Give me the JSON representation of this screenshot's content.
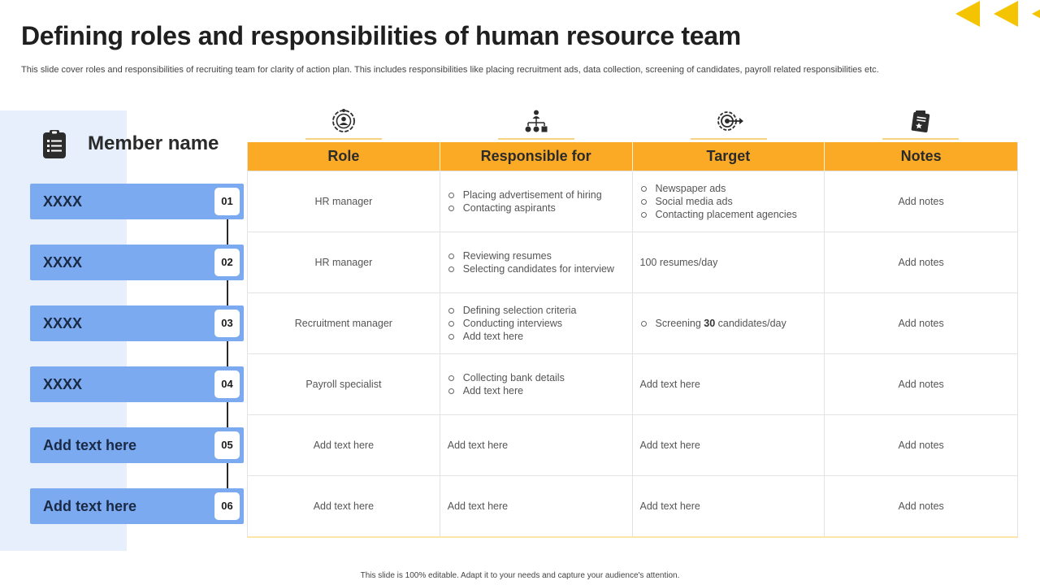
{
  "header": {
    "title": "Defining roles and responsibilities of human resource team",
    "subtitle": "This slide cover roles and responsibilities of recruiting team for clarity of action plan. This includes responsibilities like placing recruitment ads, data collection, screening of candidates, payroll related responsibilities etc."
  },
  "members": {
    "heading": "Member name",
    "icon": "clipboard-list-icon",
    "items": [
      {
        "label": "XXXX",
        "num": "01"
      },
      {
        "label": "XXXX",
        "num": "02"
      },
      {
        "label": "XXXX",
        "num": "03"
      },
      {
        "label": "XXXX",
        "num": "04"
      },
      {
        "label": "Add text here",
        "num": "05"
      },
      {
        "label": "Add text here",
        "num": "06"
      }
    ]
  },
  "table": {
    "icons": [
      "user-settings-icon",
      "org-chart-icon",
      "target-icon",
      "notes-star-icon"
    ],
    "headers": [
      "Role",
      "Responsible for",
      "Target",
      "Notes"
    ],
    "rows": [
      {
        "role": "HR manager",
        "responsible": [
          "Placing advertisement  of hiring",
          "Contacting aspirants"
        ],
        "target": [
          "Newspaper ads",
          "Social media ads",
          "Contacting placement agencies"
        ],
        "notes": "Add notes"
      },
      {
        "role": "HR manager",
        "responsible": [
          "Reviewing  resumes",
          "Selecting candidates for interview"
        ],
        "target": "100 resumes/day",
        "notes": "Add notes"
      },
      {
        "role": "Recruitment manager",
        "responsible": [
          "Defining  selection criteria",
          "Conducting  interviews",
          "Add text here"
        ],
        "target_parts": {
          "prefix": "Screening ",
          "number": "30",
          "suffix": " candidates/day"
        },
        "notes": "Add notes"
      },
      {
        "role": "Payroll specialist",
        "responsible": [
          "Collecting bank details",
          "Add text here"
        ],
        "target": "Add text here",
        "notes": "Add notes"
      },
      {
        "role": "Add text here",
        "responsible": "Add text here",
        "target": "Add text here",
        "notes": "Add notes"
      },
      {
        "role": "Add text here",
        "responsible": "Add text here",
        "target": "Add text here",
        "notes": "Add notes"
      }
    ]
  },
  "footer": "This slide is 100% editable.  Adapt it to your needs and capture your audience's attention.",
  "colors": {
    "accent_orange": "#fbaa25",
    "chevron_yellow": "#f5c400",
    "member_blue": "#7baaf1",
    "panel_blue": "#e6effb"
  }
}
